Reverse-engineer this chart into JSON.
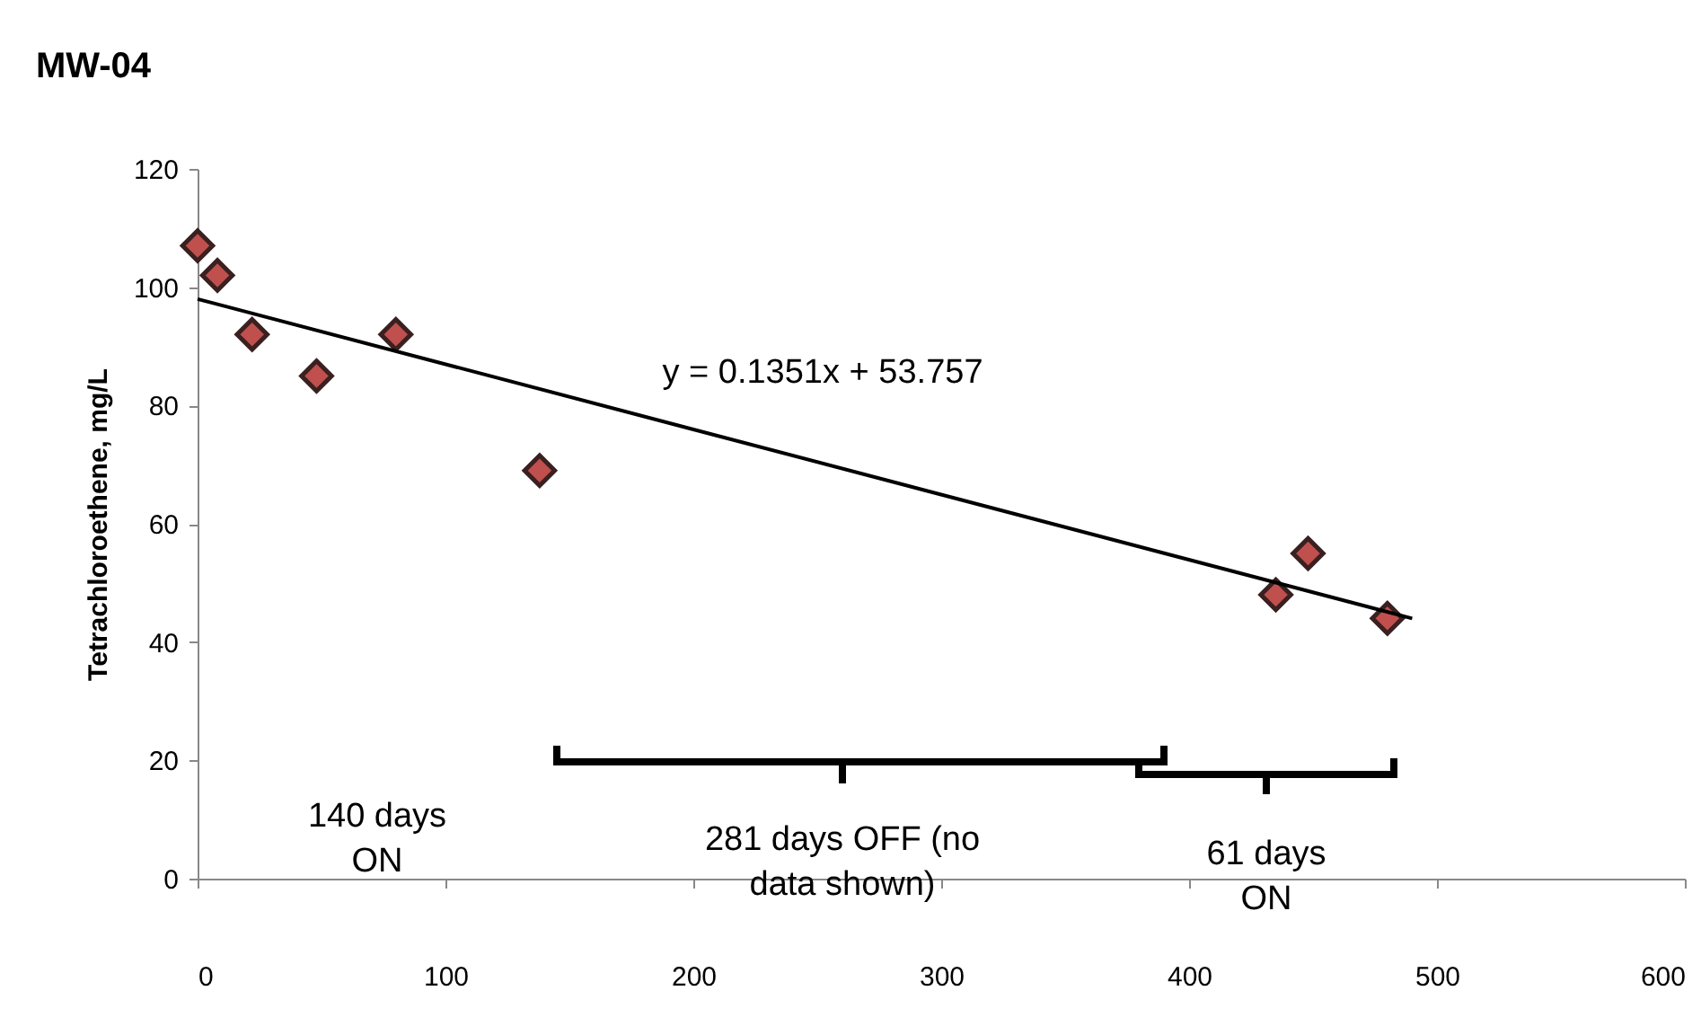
{
  "chart_data": {
    "type": "scatter",
    "title": "MW-04",
    "ylabel": "Tetrachloroethene, mg/L",
    "series": [
      {
        "color": "#c0504d",
        "x": [
          0,
          8,
          22,
          48,
          80,
          138,
          435,
          448,
          480
        ],
        "values": [
          107,
          102,
          92,
          85,
          92,
          69,
          48,
          55,
          44
        ]
      },
      {
        "type": "line",
        "color": "#000000",
        "marker": "none",
        "x": [
          0,
          490
        ],
        "values": [
          98,
          44
        ]
      }
    ],
    "marker": "diamond",
    "xlim": [
      0,
      600
    ],
    "xticks": [
      0,
      100,
      200,
      300,
      400,
      500,
      600
    ],
    "ylim": [
      0,
      120
    ],
    "yticks": [
      0,
      20,
      40,
      60,
      80,
      100,
      120
    ],
    "grid": false,
    "annotations": [
      "y = 0.1351x + 53.757",
      "140 days\nON",
      "281 days OFF (no\ndata shown)",
      "61 days\nON"
    ]
  }
}
